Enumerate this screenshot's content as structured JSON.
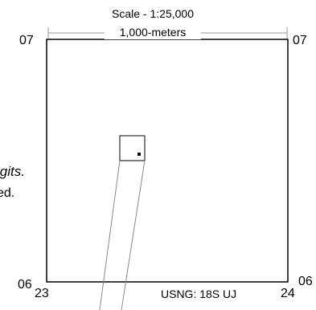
{
  "scale": {
    "title": "Scale - 1:25,000",
    "distance": "1,000-meters"
  },
  "grid": {
    "northing_top_left": "07",
    "northing_top_right": "07",
    "northing_bottom_left": "06",
    "northing_bottom_right": "06",
    "easting_left": "23",
    "easting_right": "24"
  },
  "usng_label": "USNG: 18S UJ",
  "text_fragments": {
    "italic": "igits.",
    "plain": "ed."
  }
}
